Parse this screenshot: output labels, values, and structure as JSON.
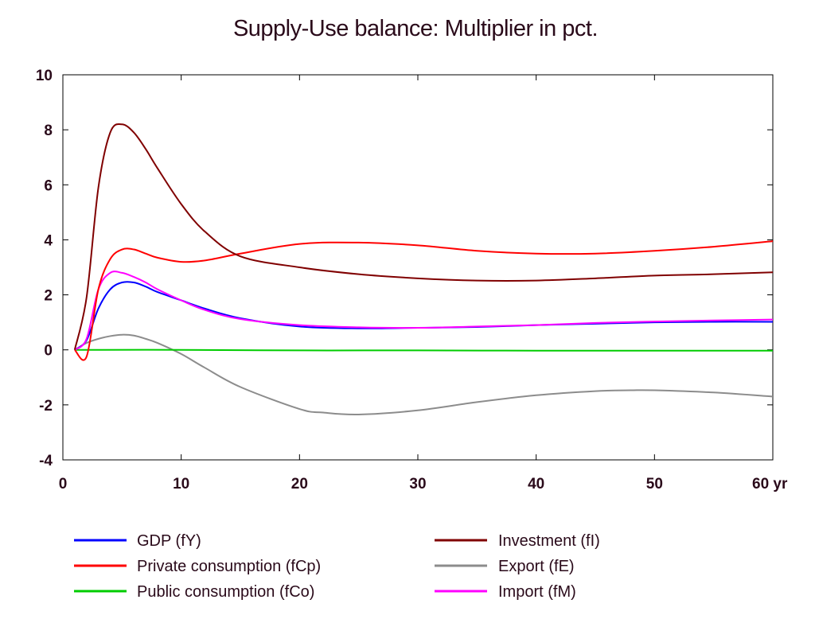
{
  "chart_data": {
    "type": "line",
    "title": "Supply-Use balance: Multiplier in pct.",
    "xlabel": "yr",
    "ylabel": "",
    "xlim": [
      0,
      60
    ],
    "ylim": [
      -4,
      10
    ],
    "xticks": [
      "0",
      "10",
      "20",
      "30",
      "40",
      "50",
      "60 yr"
    ],
    "yticks": [
      "10",
      "8",
      "6",
      "4",
      "2",
      "0",
      "-2",
      "-4"
    ],
    "grid": false,
    "legend_placement": "bottom",
    "series": [
      {
        "name": "GDP (fY)",
        "color": "#0000ff",
        "x": [
          1,
          2,
          3,
          4,
          5,
          6,
          7,
          8,
          10,
          12,
          15,
          20,
          25,
          30,
          35,
          40,
          45,
          50,
          55,
          60
        ],
        "values": [
          0,
          0.35,
          1.5,
          2.2,
          2.45,
          2.45,
          2.3,
          2.1,
          1.8,
          1.5,
          1.15,
          0.85,
          0.78,
          0.8,
          0.83,
          0.9,
          0.95,
          1.0,
          1.02,
          1.02
        ]
      },
      {
        "name": "Private consumption (fCp)",
        "color": "#ff0000",
        "x": [
          1,
          2,
          3,
          4,
          5,
          6,
          7,
          8,
          10,
          12,
          15,
          20,
          25,
          30,
          35,
          40,
          45,
          50,
          55,
          60
        ],
        "values": [
          0,
          -0.25,
          2.2,
          3.3,
          3.65,
          3.65,
          3.5,
          3.35,
          3.2,
          3.25,
          3.5,
          3.85,
          3.9,
          3.8,
          3.6,
          3.5,
          3.5,
          3.6,
          3.75,
          3.95
        ]
      },
      {
        "name": "Public consumption (fCo)",
        "color": "#00cc00",
        "x": [
          1,
          10,
          20,
          30,
          40,
          50,
          60
        ],
        "values": [
          0,
          0,
          -0.02,
          -0.02,
          -0.03,
          -0.03,
          -0.03
        ]
      },
      {
        "name": "Investment (fI)",
        "color": "#800000",
        "x": [
          1,
          2,
          3,
          4,
          5,
          6,
          7,
          8,
          10,
          12,
          15,
          20,
          25,
          30,
          35,
          40,
          45,
          50,
          55,
          60
        ],
        "values": [
          0,
          1.9,
          5.9,
          7.9,
          8.2,
          7.9,
          7.3,
          6.6,
          5.3,
          4.3,
          3.4,
          3.0,
          2.75,
          2.6,
          2.52,
          2.52,
          2.6,
          2.7,
          2.75,
          2.82
        ]
      },
      {
        "name": "Export (fE)",
        "color": "#8c8c8c",
        "x": [
          1,
          2,
          3,
          4,
          5,
          6,
          7,
          8,
          10,
          12,
          15,
          20,
          22,
          25,
          30,
          35,
          40,
          45,
          48,
          50,
          55,
          60
        ],
        "values": [
          0,
          0.25,
          0.4,
          0.5,
          0.55,
          0.52,
          0.4,
          0.25,
          -0.15,
          -0.65,
          -1.35,
          -2.15,
          -2.28,
          -2.35,
          -2.2,
          -1.9,
          -1.65,
          -1.5,
          -1.47,
          -1.47,
          -1.55,
          -1.7
        ]
      },
      {
        "name": "Import (fM)",
        "color": "#ff00ff",
        "x": [
          1,
          2,
          3,
          4,
          5,
          6,
          7,
          8,
          10,
          12,
          15,
          20,
          25,
          30,
          35,
          40,
          45,
          50,
          55,
          60
        ],
        "values": [
          0,
          0.4,
          2.2,
          2.8,
          2.8,
          2.65,
          2.45,
          2.2,
          1.8,
          1.45,
          1.12,
          0.9,
          0.82,
          0.8,
          0.85,
          0.9,
          0.98,
          1.03,
          1.07,
          1.1
        ]
      }
    ]
  }
}
